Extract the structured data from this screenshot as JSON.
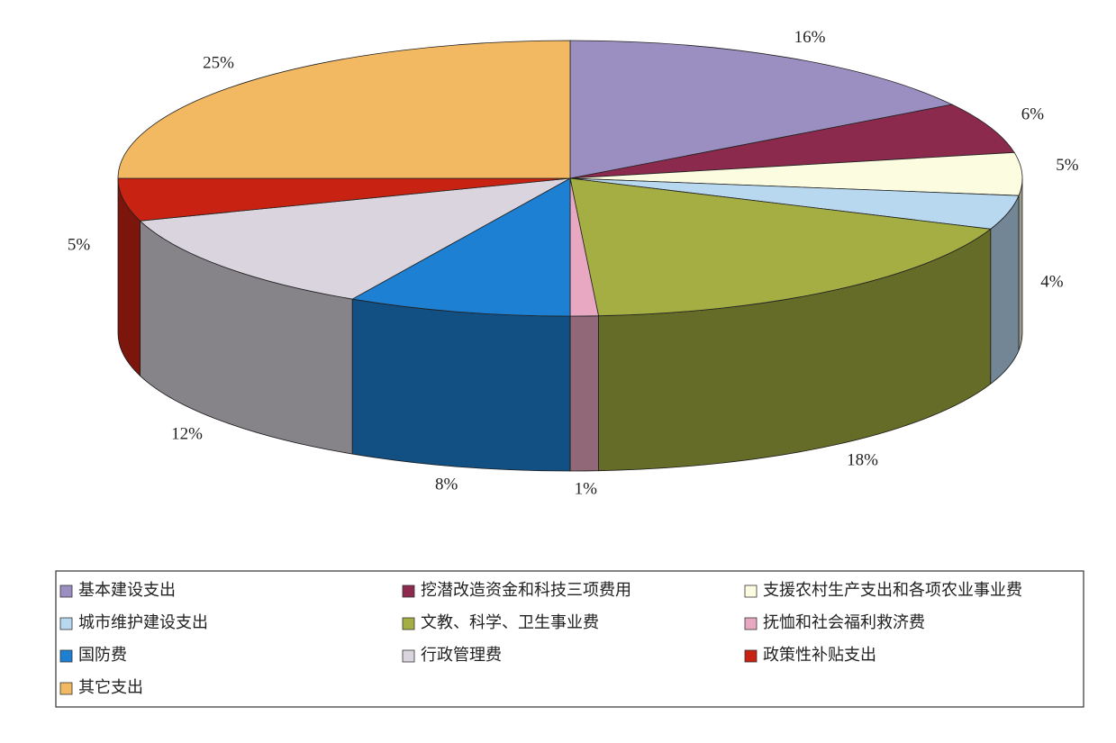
{
  "chart_data": {
    "type": "pie3d",
    "categories": [
      "基本建设支出",
      "挖潜改造资金和科技三项费用",
      "支援农村生产支出和各项农业事业费",
      "城市维护建设支出",
      "文教、科学、卫生事业费",
      "抚恤和社会福利救济费",
      "国防费",
      "行政管理费",
      "政策性补贴支出",
      "其它支出"
    ],
    "values": [
      16,
      6,
      5,
      4,
      18,
      1,
      8,
      12,
      5,
      25
    ],
    "value_labels": [
      "16%",
      "6%",
      "5%",
      "4%",
      "18%",
      "1%",
      "8%",
      "12%",
      "5%",
      "25%"
    ],
    "colors": [
      "#9b8fc2",
      "#8b2a4c",
      "#fcfce0",
      "#b8d8f0",
      "#a4ae42",
      "#e8a8c2",
      "#1e80d2",
      "#d9d4dd",
      "#c82212",
      "#f2b862"
    ],
    "legend": "bottom"
  }
}
